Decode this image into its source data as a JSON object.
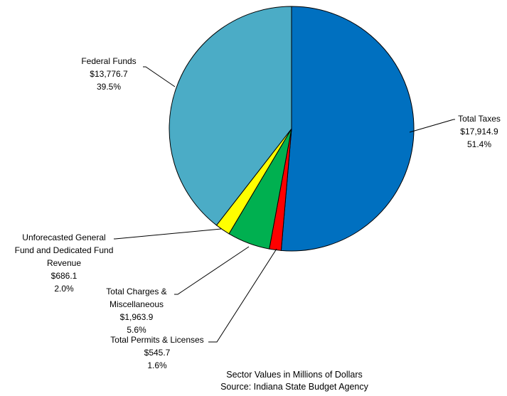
{
  "chart_data": {
    "type": "pie",
    "units": "Millions of Dollars",
    "slices": [
      {
        "name": "Total Taxes",
        "label_lines": [
          "Total Taxes"
        ],
        "value_text": "$17,914.9",
        "percent_text": "51.4%",
        "value": 17914.9,
        "percent": 51.4,
        "color": "#0070C0"
      },
      {
        "name": "Total Permits & Licenses",
        "label_lines": [
          "Total Permits & Licenses"
        ],
        "value_text": "$545.7",
        "percent_text": "1.6%",
        "value": 545.7,
        "percent": 1.6,
        "color": "#FF0000"
      },
      {
        "name": "Total Charges & Miscellaneous",
        "label_lines": [
          "Total Charges &",
          "Miscellaneous"
        ],
        "value_text": "$1,963.9",
        "percent_text": "5.6%",
        "value": 1963.9,
        "percent": 5.6,
        "color": "#00B050"
      },
      {
        "name": "Unforecasted General Fund and Dedicated Fund Revenue",
        "label_lines": [
          "Unforecasted General",
          "Fund and Dedicated Fund",
          "Revenue"
        ],
        "value_text": "$686.1",
        "percent_text": "2.0%",
        "value": 686.1,
        "percent": 2.0,
        "color": "#FFFF00"
      },
      {
        "name": "Federal Funds",
        "label_lines": [
          "Federal Funds"
        ],
        "value_text": "$13,776.7",
        "percent_text": "39.5%",
        "value": 13776.7,
        "percent": 39.5,
        "color": "#4BACC6"
      }
    ],
    "start_angle": "12 o'clock",
    "direction": "clockwise",
    "legend": "none",
    "footnote": [
      "Sector Values in Millions of Dollars",
      "Source: Indiana State Budget Agency"
    ]
  }
}
